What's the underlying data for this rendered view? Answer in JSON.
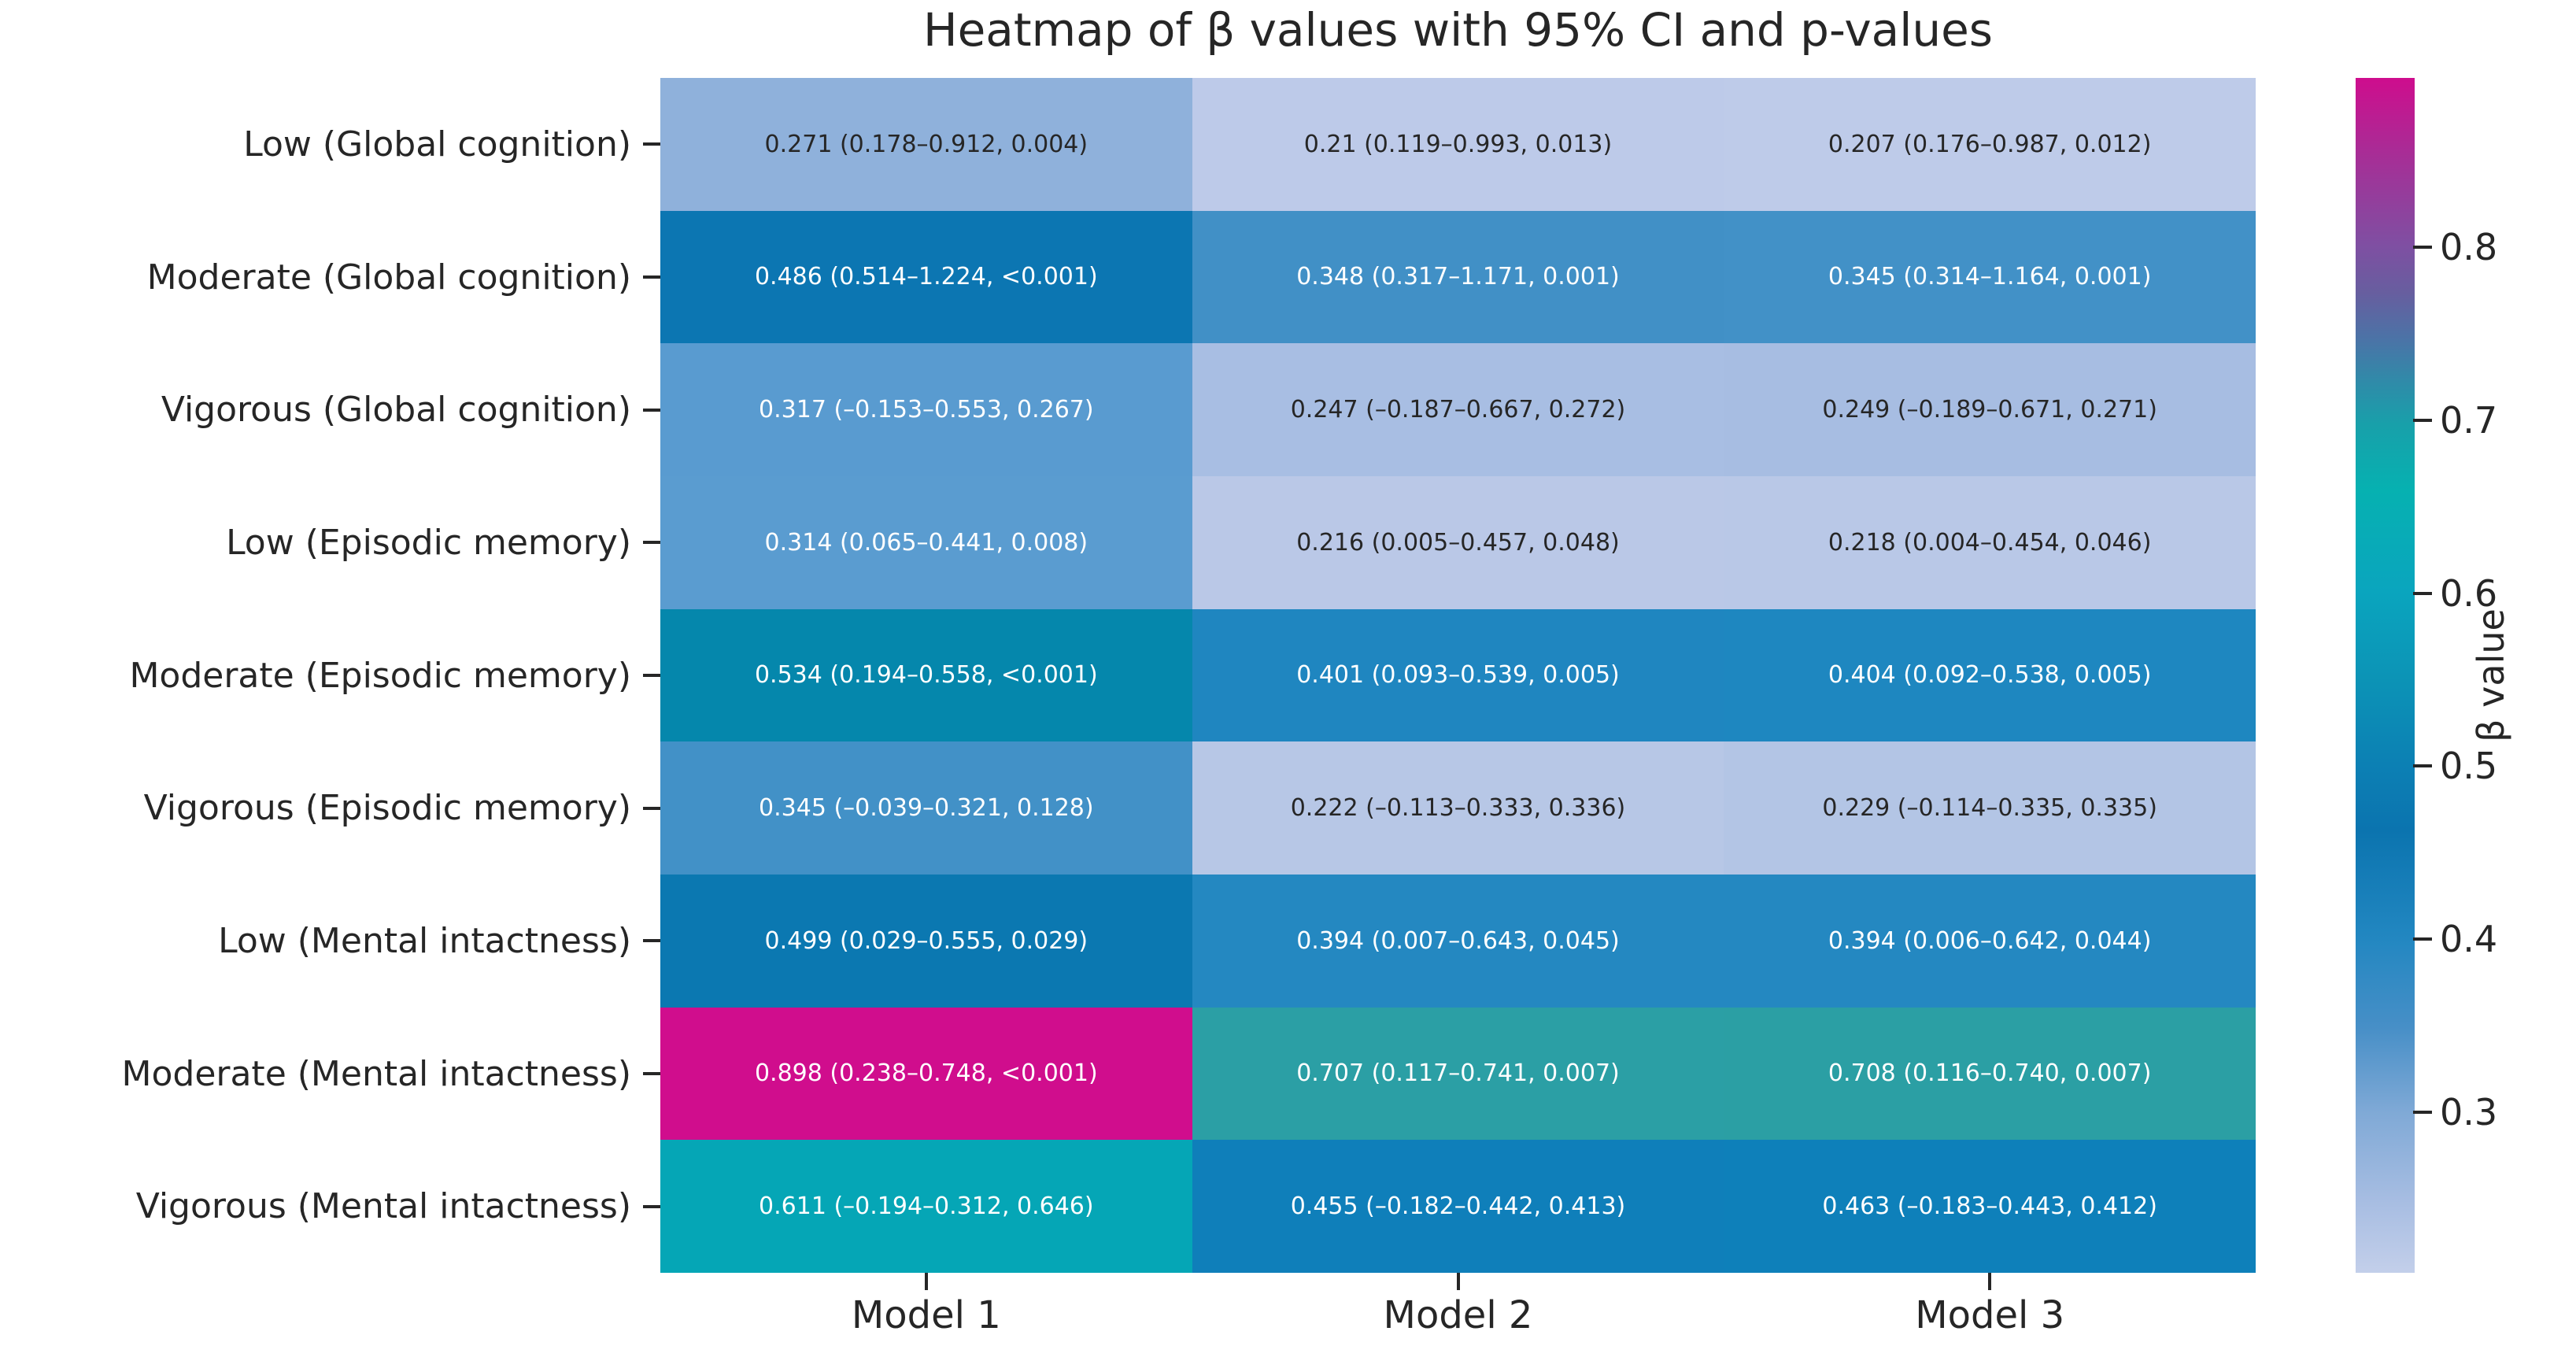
{
  "title": "Heatmap of β values with 95% CI and p-values",
  "colorbar": {
    "label": "β value",
    "vmin": 0.207,
    "vmax": 0.898,
    "tick_labels": [
      "0.8",
      "0.7",
      "0.6",
      "0.5",
      "0.4",
      "0.3"
    ],
    "tick_values": [
      0.8,
      0.7,
      0.6,
      0.5,
      0.4,
      0.3
    ]
  },
  "colors": {
    "background": "#ffffff",
    "text_dark": "#262626",
    "text_light": "#ffffff",
    "tick": "#262626",
    "magenta_max": "#ce0d8d",
    "teal_mid": "#06b1b1",
    "light_blue_min": "#c3cfea"
  },
  "chart_data": {
    "type": "heatmap",
    "title": "Heatmap of β values with 95% CI and p-values",
    "rows": [
      "Low (Global cognition)",
      "Moderate (Global cognition)",
      "Vigorous (Global cognition)",
      "Low (Episodic memory)",
      "Moderate (Episodic memory)",
      "Vigorous (Episodic memory)",
      "Low (Mental intactness)",
      "Moderate (Mental intactness)",
      "Vigorous (Mental intactness)"
    ],
    "columns": [
      "Model 1",
      "Model 2",
      "Model 3"
    ],
    "values": [
      [
        0.271,
        0.21,
        0.207
      ],
      [
        0.486,
        0.348,
        0.345
      ],
      [
        0.317,
        0.247,
        0.249
      ],
      [
        0.314,
        0.216,
        0.218
      ],
      [
        0.534,
        0.401,
        0.404
      ],
      [
        0.345,
        0.222,
        0.229
      ],
      [
        0.499,
        0.394,
        0.394
      ],
      [
        0.898,
        0.707,
        0.708
      ],
      [
        0.611,
        0.455,
        0.463
      ]
    ],
    "cell_labels": [
      [
        "0.271 (0.178–0.912, 0.004)",
        "0.21 (0.119–0.993, 0.013)",
        "0.207 (0.176–0.987, 0.012)"
      ],
      [
        "0.486 (0.514–1.224, <0.001)",
        "0.348 (0.317–1.171, 0.001)",
        "0.345 (0.314–1.164, 0.001)"
      ],
      [
        "0.317 (–0.153–0.553, 0.267)",
        "0.247 (–0.187–0.667, 0.272)",
        "0.249 (–0.189–0.671, 0.271)"
      ],
      [
        "0.314 (0.065–0.441, 0.008)",
        "0.216 (0.005–0.457, 0.048)",
        "0.218 (0.004–0.454, 0.046)"
      ],
      [
        "0.534 (0.194–0.558, <0.001)",
        "0.401 (0.093–0.539, 0.005)",
        "0.404 (0.092–0.538, 0.005)"
      ],
      [
        "0.345 (–0.039–0.321, 0.128)",
        "0.222 (–0.113–0.333, 0.336)",
        "0.229 (–0.114–0.335, 0.335)"
      ],
      [
        "0.499 (0.029–0.555, 0.029)",
        "0.394 (0.007–0.643, 0.045)",
        "0.394 (0.006–0.642, 0.044)"
      ],
      [
        "0.898 (0.238–0.748, <0.001)",
        "0.707 (0.117–0.741, 0.007)",
        "0.708 (0.116–0.740, 0.007)"
      ],
      [
        "0.611 (–0.194–0.312, 0.646)",
        "0.455 (–0.182–0.442, 0.413)",
        "0.463 (–0.183–0.443, 0.412)"
      ]
    ],
    "cell_colors": [
      [
        "#8fb1db",
        "#bdcae9",
        "#becbe9"
      ],
      [
        "#0c76b2",
        "#4190c6",
        "#4291c7"
      ],
      [
        "#599bd0",
        "#a8bee3",
        "#a7bde2"
      ],
      [
        "#5a9cd0",
        "#bac8e7",
        "#b9c8e7"
      ],
      [
        "#0587ac",
        "#1f86c0",
        "#1e87c0"
      ],
      [
        "#4291c7",
        "#b7c7e6",
        "#b3c5e5"
      ],
      [
        "#0b78b1",
        "#2488c1",
        "#2488c1"
      ],
      [
        "#d00d8d",
        "#2b9fa5",
        "#2b9fa4"
      ],
      [
        "#05a6b6",
        "#0f7fba",
        "#0e80ba"
      ]
    ],
    "cell_text_colors": [
      [
        "#262626",
        "#262626",
        "#262626"
      ],
      [
        "#ffffff",
        "#ffffff",
        "#ffffff"
      ],
      [
        "#ffffff",
        "#262626",
        "#262626"
      ],
      [
        "#ffffff",
        "#262626",
        "#262626"
      ],
      [
        "#ffffff",
        "#ffffff",
        "#ffffff"
      ],
      [
        "#ffffff",
        "#262626",
        "#262626"
      ],
      [
        "#ffffff",
        "#ffffff",
        "#ffffff"
      ],
      [
        "#ffffff",
        "#ffffff",
        "#ffffff"
      ],
      [
        "#ffffff",
        "#ffffff",
        "#ffffff"
      ]
    ],
    "colorbar": {
      "label": "β value",
      "ticks": [
        0.8,
        0.7,
        0.6,
        0.5,
        0.4,
        0.3
      ],
      "vmin": 0.207,
      "vmax": 0.898,
      "position": "right",
      "gradient_stops": [
        {
          "pos": 0,
          "color": "#ce0d8d"
        },
        {
          "pos": 7,
          "color": "#a43097"
        },
        {
          "pos": 14,
          "color": "#7f4fa2"
        },
        {
          "pos": 18,
          "color": "#675e9f"
        },
        {
          "pos": 22,
          "color": "#4a74a7"
        },
        {
          "pos": 25.5,
          "color": "#2f8ba9"
        },
        {
          "pos": 29,
          "color": "#18a0aa"
        },
        {
          "pos": 34.5,
          "color": "#06b1b1"
        },
        {
          "pos": 43,
          "color": "#0aa5be"
        },
        {
          "pos": 50.5,
          "color": "#0c93b6"
        },
        {
          "pos": 57.5,
          "color": "#0c80b4"
        },
        {
          "pos": 63,
          "color": "#0b74af"
        },
        {
          "pos": 72,
          "color": "#2287c1"
        },
        {
          "pos": 79.5,
          "color": "#478fc7"
        },
        {
          "pos": 86.5,
          "color": "#7fa9d6"
        },
        {
          "pos": 94,
          "color": "#a7bde2"
        },
        {
          "pos": 100,
          "color": "#c3cfea"
        }
      ]
    },
    "grid": false
  }
}
